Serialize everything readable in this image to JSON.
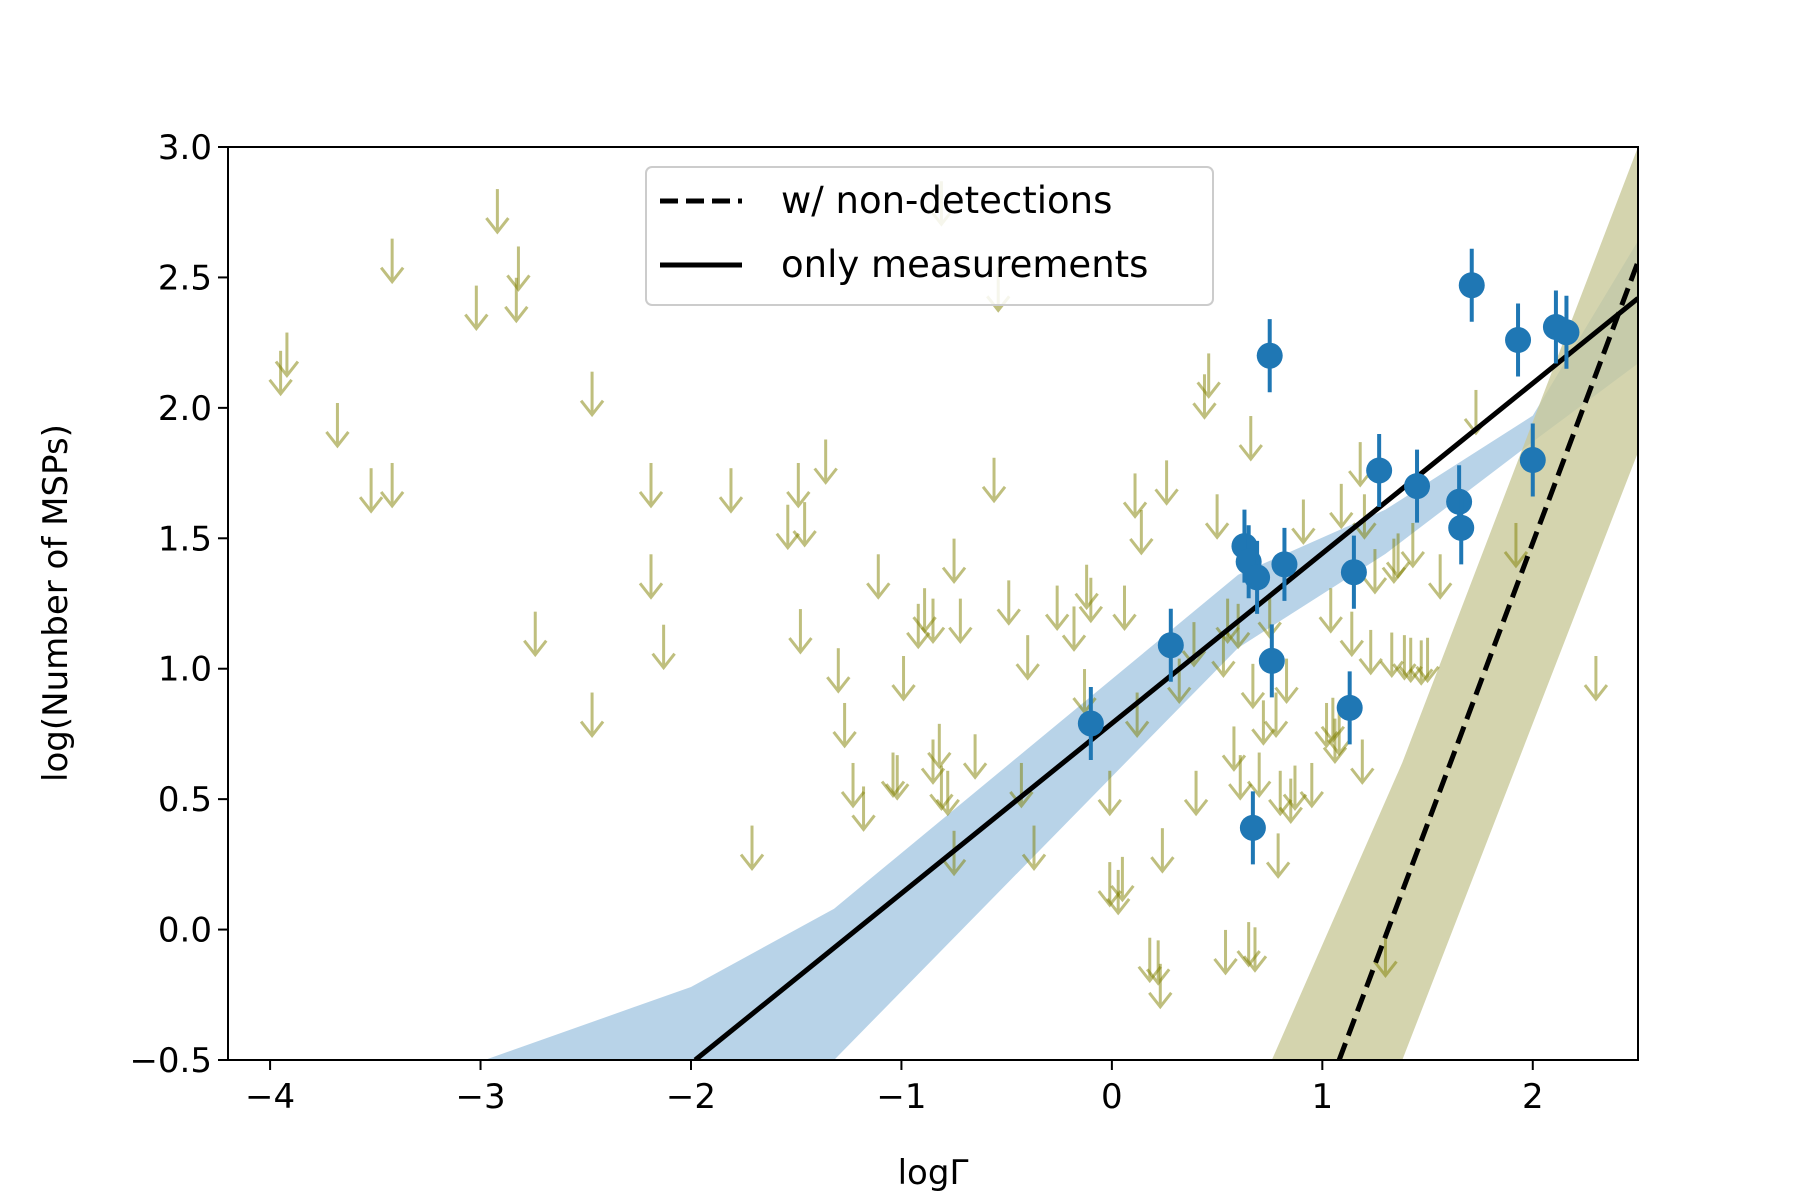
{
  "chart_data": {
    "type": "scatter",
    "title": "",
    "xlabel": "logΓ",
    "ylabel": "log(Number of MSPs)",
    "xlim": [
      -4.2,
      2.5
    ],
    "ylim": [
      -0.5,
      3.0
    ],
    "grid": false,
    "legend_position": "top-center",
    "x_ticks": [
      -4,
      -3,
      -2,
      -1,
      0,
      1,
      2
    ],
    "x_tick_labels": [
      "−4",
      "−3",
      "−2",
      "−1",
      "0",
      "1",
      "2"
    ],
    "y_ticks": [
      -0.5,
      0.0,
      0.5,
      1.0,
      1.5,
      2.0,
      2.5,
      3.0
    ],
    "y_tick_labels": [
      "−0.5",
      "0.0",
      "0.5",
      "1.0",
      "1.5",
      "2.0",
      "2.5",
      "3.0"
    ],
    "colors": {
      "measurements": "#1f77b4",
      "upper_limits": "#808000",
      "blue_band": "#a6c8e2",
      "olive_band": "#c9c99a",
      "fit_lines": "#000000"
    },
    "series": [
      {
        "name": "measurements",
        "kind": "errorbar",
        "x": [
          -0.1,
          0.28,
          0.63,
          0.65,
          0.67,
          0.69,
          0.75,
          0.76,
          0.82,
          1.13,
          1.15,
          1.27,
          1.45,
          1.65,
          1.66,
          1.71,
          1.93,
          2.0,
          2.11,
          2.16
        ],
        "y": [
          0.79,
          1.09,
          1.47,
          1.41,
          0.39,
          1.35,
          2.2,
          1.03,
          1.4,
          0.85,
          1.37,
          1.76,
          1.7,
          1.64,
          1.54,
          2.47,
          2.26,
          1.8,
          2.31,
          2.29
        ],
        "yerr": 0.14
      },
      {
        "name": "upper limits",
        "kind": "upper_limit_arrows",
        "points": [
          [
            -3.95,
            2.05
          ],
          [
            -3.92,
            2.12
          ],
          [
            -3.68,
            1.85
          ],
          [
            -3.52,
            1.6
          ],
          [
            -3.42,
            1.62
          ],
          [
            -3.42,
            2.48
          ],
          [
            -3.02,
            2.3
          ],
          [
            -2.92,
            2.67
          ],
          [
            -2.83,
            2.33
          ],
          [
            -2.82,
            2.45
          ],
          [
            -2.74,
            1.05
          ],
          [
            -2.47,
            1.97
          ],
          [
            -2.47,
            0.74
          ],
          [
            -2.19,
            1.62
          ],
          [
            -2.19,
            1.27
          ],
          [
            -2.13,
            1.0
          ],
          [
            -1.81,
            1.6
          ],
          [
            -1.71,
            0.23
          ],
          [
            -1.54,
            1.46
          ],
          [
            -1.49,
            1.62
          ],
          [
            -1.48,
            1.06
          ],
          [
            -1.46,
            1.47
          ],
          [
            -1.36,
            1.71
          ],
          [
            -1.3,
            0.91
          ],
          [
            -1.27,
            0.7
          ],
          [
            -1.23,
            0.47
          ],
          [
            -1.18,
            0.38
          ],
          [
            -1.11,
            1.27
          ],
          [
            -1.04,
            0.51
          ],
          [
            -1.02,
            0.5
          ],
          [
            -0.99,
            0.88
          ],
          [
            -0.92,
            1.08
          ],
          [
            -0.89,
            1.14
          ],
          [
            -0.85,
            0.56
          ],
          [
            -0.85,
            1.1
          ],
          [
            -0.82,
            0.62
          ],
          [
            -0.81,
            0.46
          ],
          [
            -0.81,
            2.7
          ],
          [
            -0.78,
            0.44
          ],
          [
            -0.75,
            1.33
          ],
          [
            -0.75,
            0.21
          ],
          [
            -0.72,
            1.1
          ],
          [
            -0.65,
            0.58
          ],
          [
            -0.56,
            1.64
          ],
          [
            -0.54,
            2.37
          ],
          [
            -0.49,
            1.17
          ],
          [
            -0.43,
            0.47
          ],
          [
            -0.4,
            0.96
          ],
          [
            -0.37,
            0.23
          ],
          [
            -0.26,
            1.15
          ],
          [
            -0.18,
            1.07
          ],
          [
            -0.13,
            0.83
          ],
          [
            -0.12,
            1.23
          ],
          [
            -0.1,
            1.18
          ],
          [
            -0.01,
            0.09
          ],
          [
            -0.01,
            0.44
          ],
          [
            0.03,
            0.06
          ],
          [
            0.05,
            0.11
          ],
          [
            0.06,
            1.15
          ],
          [
            0.11,
            1.58
          ],
          [
            0.12,
            0.74
          ],
          [
            0.14,
            1.44
          ],
          [
            0.18,
            -0.2
          ],
          [
            0.22,
            -0.21
          ],
          [
            0.23,
            -0.3
          ],
          [
            0.24,
            0.22
          ],
          [
            0.26,
            1.63
          ],
          [
            0.32,
            0.87
          ],
          [
            0.39,
            1.01
          ],
          [
            0.4,
            0.44
          ],
          [
            0.44,
            1.96
          ],
          [
            0.46,
            2.04
          ],
          [
            0.5,
            1.5
          ],
          [
            0.53,
            0.97
          ],
          [
            0.54,
            -0.17
          ],
          [
            0.55,
            1.1
          ],
          [
            0.58,
            0.61
          ],
          [
            0.6,
            1.08
          ],
          [
            0.61,
            0.5
          ],
          [
            0.65,
            -0.14
          ],
          [
            0.66,
            1.8
          ],
          [
            0.67,
            0.85
          ],
          [
            0.68,
            -0.16
          ],
          [
            0.7,
            0.51
          ],
          [
            0.72,
            0.71
          ],
          [
            0.75,
            1.12
          ],
          [
            0.78,
            0.74
          ],
          [
            0.79,
            0.2
          ],
          [
            0.8,
            0.44
          ],
          [
            0.83,
            0.87
          ],
          [
            0.85,
            0.41
          ],
          [
            0.87,
            0.46
          ],
          [
            0.91,
            1.48
          ],
          [
            0.95,
            0.47
          ],
          [
            1.02,
            0.7
          ],
          [
            1.04,
            1.14
          ],
          [
            1.05,
            0.72
          ],
          [
            1.06,
            0.64
          ],
          [
            1.08,
            0.67
          ],
          [
            1.09,
            1.54
          ],
          [
            1.14,
            1.05
          ],
          [
            1.18,
            1.7
          ],
          [
            1.19,
            0.56
          ],
          [
            1.2,
            1.5
          ],
          [
            1.23,
            0.98
          ],
          [
            1.25,
            1.29
          ],
          [
            1.33,
            0.97
          ],
          [
            1.34,
            1.33
          ],
          [
            1.36,
            1.35
          ],
          [
            1.39,
            0.96
          ],
          [
            1.42,
            0.95
          ],
          [
            1.43,
            1.39
          ],
          [
            1.47,
            0.94
          ],
          [
            1.5,
            0.95
          ],
          [
            1.56,
            1.27
          ],
          [
            1.73,
            1.9
          ],
          [
            1.92,
            1.39
          ],
          [
            2.3,
            0.88
          ],
          [
            1.3,
            -0.18
          ]
        ]
      },
      {
        "name": "only measurements",
        "kind": "line",
        "style": "solid",
        "x": [
          -1.98,
          2.5
        ],
        "y": [
          -0.5,
          2.42
        ],
        "band_x": [
          -2.98,
          -2.0,
          -1.32,
          0.6,
          1.3,
          2.0,
          2.5
        ],
        "band_lower": [
          -0.5,
          -0.5,
          -0.5,
          1.08,
          1.44,
          1.87,
          2.17
        ],
        "band_upper": [
          -0.5,
          -0.22,
          0.08,
          1.36,
          1.61,
          1.97,
          2.64
        ]
      },
      {
        "name": "w/ non-detections",
        "kind": "line",
        "style": "dashed",
        "x": [
          1.08,
          2.5
        ],
        "y": [
          -0.5,
          2.56
        ],
        "band_x": [
          0.76,
          1.38,
          2.5
        ],
        "band_lower": [
          -0.5,
          -0.5,
          1.83
        ],
        "band_upper": [
          -0.5,
          0.64,
          3.0
        ]
      }
    ],
    "legend": [
      {
        "label": "w/ non-detections",
        "style": "dashed"
      },
      {
        "label": "only measurements",
        "style": "solid"
      }
    ]
  }
}
